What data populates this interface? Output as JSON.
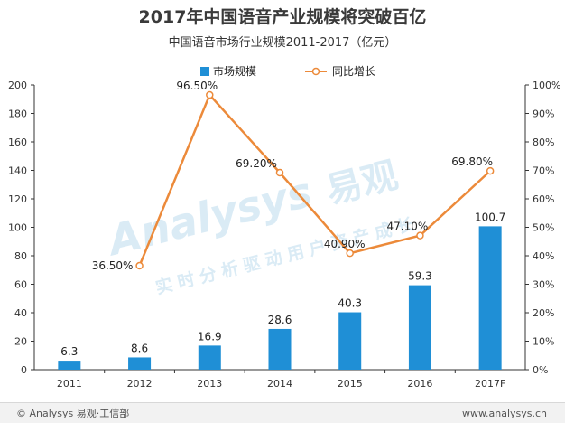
{
  "title": "2017年中国语音产业规模将突破百亿",
  "subtitle": "中国语音市场行业规模2011-2017（亿元）",
  "watermark": {
    "logo": "Analysys",
    "cn": "易观",
    "tagline": "实时分析驱动用户资产成长"
  },
  "footer": {
    "left": "© Analysys 易观·工信部",
    "right": "www.analysys.cn"
  },
  "colors": {
    "bar": "#1f8fd6",
    "line": "#ec8a3a"
  },
  "chart_data": {
    "type": "bar",
    "categories": [
      "2011",
      "2012",
      "2013",
      "2014",
      "2015",
      "2016",
      "2017F"
    ],
    "series": [
      {
        "name": "市场规模",
        "type": "bar",
        "axis": "left",
        "values": [
          6.3,
          8.6,
          16.9,
          28.6,
          40.3,
          59.3,
          100.7
        ],
        "labels": [
          "6.3",
          "8.6",
          "16.9",
          "28.6",
          "40.3",
          "59.3",
          "100.7"
        ]
      },
      {
        "name": "同比增长",
        "type": "line",
        "axis": "right",
        "values": [
          null,
          36.5,
          96.5,
          69.2,
          40.9,
          47.1,
          69.8
        ],
        "labels": [
          "",
          "36.50%",
          "96.50%",
          "69.20%",
          "40.90%",
          "47.10%",
          "69.80%"
        ]
      }
    ],
    "y_left": {
      "min": 0,
      "max": 200,
      "ticks": [
        "0",
        "20",
        "40",
        "60",
        "80",
        "100",
        "120",
        "140",
        "160",
        "180",
        "200"
      ]
    },
    "y_right": {
      "min": 0,
      "max": 100,
      "ticks": [
        "0%",
        "10%",
        "20%",
        "30%",
        "40%",
        "50%",
        "60%",
        "70%",
        "80%",
        "90%",
        "100%"
      ]
    },
    "legend_position": "top-center",
    "grid": false
  }
}
